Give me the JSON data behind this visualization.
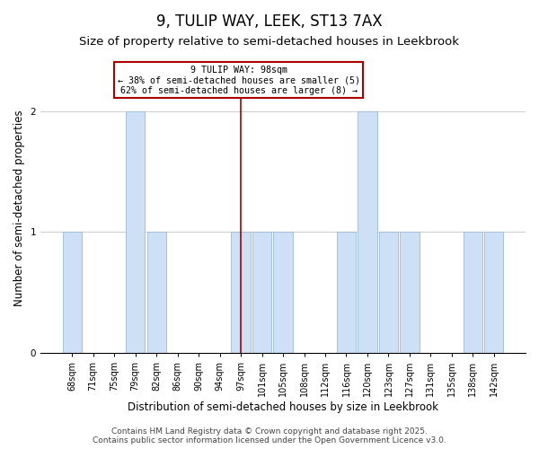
{
  "title": "9, TULIP WAY, LEEK, ST13 7AX",
  "subtitle": "Size of property relative to semi-detached houses in Leekbrook",
  "xlabel": "Distribution of semi-detached houses by size in Leekbrook",
  "ylabel": "Number of semi-detached properties",
  "categories": [
    "68sqm",
    "71sqm",
    "75sqm",
    "79sqm",
    "82sqm",
    "86sqm",
    "90sqm",
    "94sqm",
    "97sqm",
    "101sqm",
    "105sqm",
    "108sqm",
    "112sqm",
    "116sqm",
    "120sqm",
    "123sqm",
    "127sqm",
    "131sqm",
    "135sqm",
    "138sqm",
    "142sqm"
  ],
  "values": [
    1,
    0,
    0,
    2,
    1,
    0,
    0,
    0,
    1,
    1,
    1,
    0,
    0,
    1,
    2,
    1,
    1,
    0,
    0,
    1,
    1
  ],
  "bar_color": "#cde0f5",
  "bar_edge_color": "#9abbd8",
  "highlight_index": 8,
  "highlight_line_color": "#aa0000",
  "annotation_text": "9 TULIP WAY: 98sqm\n← 38% of semi-detached houses are smaller (5)\n62% of semi-detached houses are larger (8) →",
  "annotation_box_edgecolor": "#aa0000",
  "ylim": [
    0,
    2.4
  ],
  "yticks": [
    0,
    1,
    2
  ],
  "footer_line1": "Contains HM Land Registry data © Crown copyright and database right 2025.",
  "footer_line2": "Contains public sector information licensed under the Open Government Licence v3.0.",
  "bg_color": "#ffffff",
  "title_fontsize": 12,
  "subtitle_fontsize": 9.5,
  "axis_label_fontsize": 8.5,
  "tick_fontsize": 7,
  "footer_fontsize": 6.5
}
